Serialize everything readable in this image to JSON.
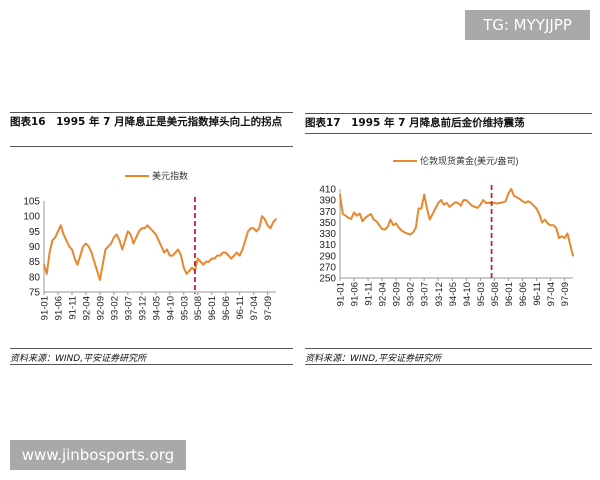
{
  "watermarks": {
    "top": "TG: MYYJJPP",
    "bottom": "www.jinbosports.org"
  },
  "chart_data": [
    {
      "type": "line",
      "title": "图表16　1995 年 7 月降息正是美元指数掉头向上的拐点",
      "source": "资料来源：WIND,平安证券研究所",
      "legend": "top",
      "ylim": [
        75,
        105
      ],
      "yticks": [
        75,
        80,
        85,
        90,
        95,
        100,
        105
      ],
      "xtick_labels": [
        "91-01",
        "91-06",
        "91-11",
        "92-04",
        "92-09",
        "93-02",
        "93-07",
        "93-12",
        "94-05",
        "94-10",
        "95-03",
        "95-08",
        "96-01",
        "96-06",
        "96-11",
        "97-04",
        "97-09"
      ],
      "marker_line": {
        "x": "95-07",
        "style": "dashed",
        "color": "#d0202a"
      },
      "line_color": "#e8872e",
      "series": [
        {
          "name": "美元指数",
          "start": "91-01",
          "frequency": "monthly",
          "values": [
            84,
            81,
            88,
            92,
            93,
            95,
            97,
            94,
            92,
            90,
            89,
            86,
            84,
            87,
            90,
            91,
            90,
            88,
            85,
            82,
            79,
            84,
            89,
            90,
            91,
            93,
            94,
            92,
            89,
            92,
            95,
            94,
            91,
            93,
            95,
            96,
            96,
            97,
            96,
            95,
            94,
            92,
            90,
            88,
            89,
            87,
            87,
            88,
            89,
            87,
            83,
            81,
            82,
            83,
            82,
            86,
            85,
            84,
            85,
            85,
            86,
            86,
            87,
            87,
            88,
            88,
            87,
            86,
            87,
            88,
            87,
            89,
            92,
            95,
            96,
            96,
            95,
            96,
            100,
            99,
            97,
            96,
            98,
            99
          ]
        }
      ]
    },
    {
      "type": "line",
      "title": "图表17　1995 年 7 月降息前后金价维持震荡",
      "source": "资料来源：WIND,平安证券研究所",
      "legend": "top",
      "ylim": [
        250,
        410
      ],
      "yticks": [
        250,
        270,
        290,
        310,
        330,
        350,
        370,
        390,
        410
      ],
      "xtick_labels": [
        "91-01",
        "91-06",
        "91-11",
        "92-04",
        "92-09",
        "93-02",
        "93-07",
        "93-12",
        "94-05",
        "94-10",
        "95-03",
        "95-08",
        "96-01",
        "96-06",
        "96-11",
        "97-04",
        "97-09"
      ],
      "marker_line": {
        "x": "95-07",
        "style": "dashed",
        "color": "#d0202a"
      },
      "line_color": "#e8872e",
      "series": [
        {
          "name": "伦敦现货黄金(美元/盎司)",
          "start": "91-01",
          "frequency": "monthly",
          "values": [
            400,
            365,
            362,
            358,
            356,
            368,
            362,
            366,
            352,
            358,
            362,
            365,
            355,
            352,
            345,
            338,
            337,
            342,
            355,
            345,
            348,
            340,
            335,
            332,
            330,
            328,
            332,
            340,
            375,
            375,
            400,
            375,
            355,
            365,
            375,
            385,
            390,
            382,
            385,
            378,
            382,
            386,
            385,
            380,
            390,
            390,
            385,
            380,
            378,
            376,
            382,
            390,
            385,
            385,
            385,
            385,
            384,
            385,
            386,
            388,
            402,
            410,
            398,
            395,
            392,
            388,
            385,
            388,
            385,
            380,
            375,
            365,
            350,
            355,
            348,
            345,
            345,
            340,
            322,
            325,
            322,
            330,
            310,
            290
          ]
        }
      ]
    }
  ]
}
